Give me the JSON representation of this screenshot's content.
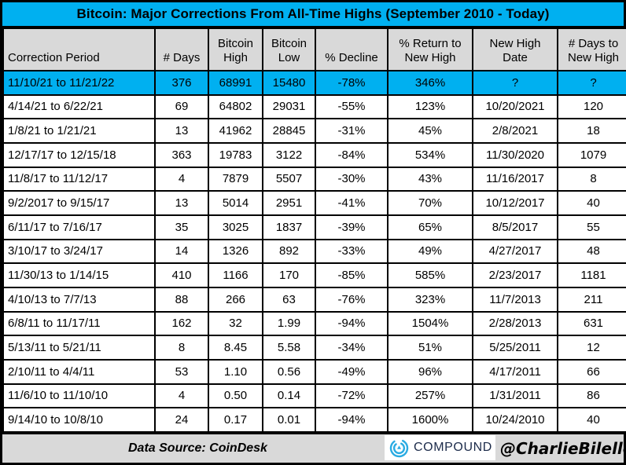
{
  "title": "Bitcoin: Major Corrections From All-Time Highs (September 2010 - Today)",
  "chart_data": {
    "type": "table",
    "title": "Bitcoin: Major Corrections From All-Time Highs (September 2010 - Today)",
    "columns": [
      "Correction Period",
      "# Days",
      "Bitcoin\nHigh",
      "Bitcoin\nLow",
      "% Decline",
      "% Return to\nNew High",
      "New High\nDate",
      "# Days to\nNew High"
    ],
    "rows": [
      [
        "11/10/21 to 11/21/22",
        "376",
        "68991",
        "15480",
        "-78%",
        "346%",
        "?",
        "?"
      ],
      [
        "4/14/21 to 6/22/21",
        "69",
        "64802",
        "29031",
        "-55%",
        "123%",
        "10/20/2021",
        "120"
      ],
      [
        "1/8/21 to 1/21/21",
        "13",
        "41962",
        "28845",
        "-31%",
        "45%",
        "2/8/2021",
        "18"
      ],
      [
        "12/17/17 to 12/15/18",
        "363",
        "19783",
        "3122",
        "-84%",
        "534%",
        "11/30/2020",
        "1079"
      ],
      [
        "11/8/17 to 11/12/17",
        "4",
        "7879",
        "5507",
        "-30%",
        "43%",
        "11/16/2017",
        "8"
      ],
      [
        "9/2/2017 to 9/15/17",
        "13",
        "5014",
        "2951",
        "-41%",
        "70%",
        "10/12/2017",
        "40"
      ],
      [
        "6/11/17 to 7/16/17",
        "35",
        "3025",
        "1837",
        "-39%",
        "65%",
        "8/5/2017",
        "55"
      ],
      [
        "3/10/17 to 3/24/17",
        "14",
        "1326",
        "892",
        "-33%",
        "49%",
        "4/27/2017",
        "48"
      ],
      [
        "11/30/13 to 1/14/15",
        "410",
        "1166",
        "170",
        "-85%",
        "585%",
        "2/23/2017",
        "1181"
      ],
      [
        "4/10/13 to 7/7/13",
        "88",
        "266",
        "63",
        "-76%",
        "323%",
        "11/7/2013",
        "211"
      ],
      [
        "6/8/11 to 11/17/11",
        "162",
        "32",
        "1.99",
        "-94%",
        "1504%",
        "2/28/2013",
        "631"
      ],
      [
        "5/13/11 to 5/21/11",
        "8",
        "8.45",
        "5.58",
        "-34%",
        "51%",
        "5/25/2011",
        "12"
      ],
      [
        "2/10/11 to 4/4/11",
        "53",
        "1.10",
        "0.56",
        "-49%",
        "96%",
        "4/17/2011",
        "66"
      ],
      [
        "11/6/10 to 11/10/10",
        "4",
        "0.50",
        "0.14",
        "-72%",
        "257%",
        "1/31/2011",
        "86"
      ],
      [
        "9/14/10 to 10/8/10",
        "24",
        "0.17",
        "0.01",
        "-94%",
        "1600%",
        "10/24/2010",
        "40"
      ]
    ],
    "highlighted_row": 0,
    "layout": {
      "grid": true,
      "header_position": "top"
    }
  },
  "footer": {
    "data_source": "Data Source: CoinDesk",
    "logo_text": "COMPOUND",
    "handle": "@CharlieBilello"
  },
  "colors": {
    "highlight_cyan": "#00B0F0",
    "header_gray": "#D9D9D9",
    "border_black": "#000000",
    "logo_blue": "#29ABE2",
    "logo_navy": "#1C2B4A"
  }
}
